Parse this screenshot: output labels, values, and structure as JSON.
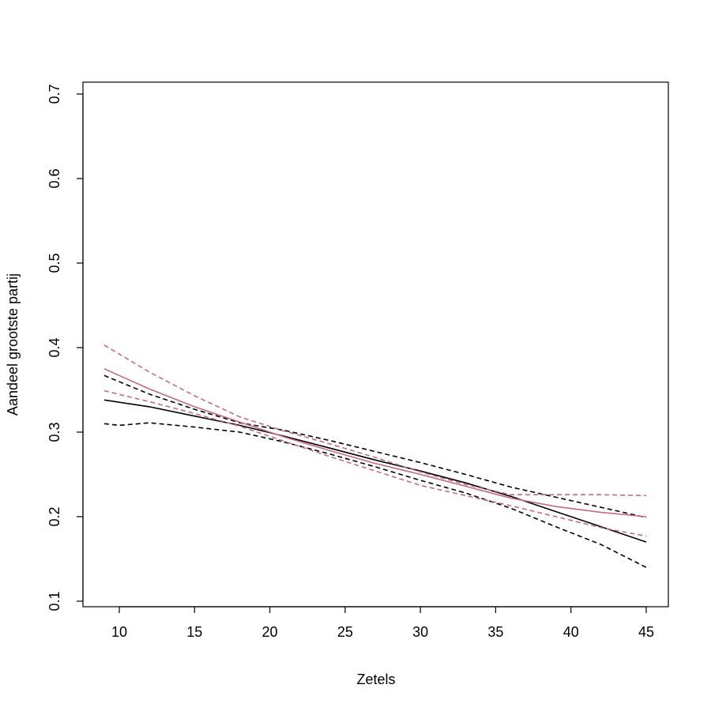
{
  "chart_data": {
    "type": "line",
    "title": "",
    "xlabel": "Zetels",
    "ylabel": "Aandeel grootste partij",
    "xlim": [
      9,
      45
    ],
    "ylim": [
      0.1,
      0.7
    ],
    "x_ticks": [
      10,
      15,
      20,
      25,
      30,
      35,
      40,
      45
    ],
    "y_ticks": [
      0.1,
      0.2,
      0.3,
      0.4,
      0.5,
      0.6,
      0.7
    ],
    "x_tick_labels": [
      "10",
      "15",
      "20",
      "25",
      "30",
      "35",
      "40",
      "45"
    ],
    "y_tick_labels": [
      "0.1",
      "0.2",
      "0.3",
      "0.4",
      "0.5",
      "0.6",
      "0.7"
    ],
    "legend": "none",
    "grid": false,
    "series": [
      {
        "color": "#000000",
        "style": "solid",
        "x": [
          9,
          12,
          15,
          18,
          21,
          24,
          27,
          30,
          33,
          36,
          39,
          42,
          45
        ],
        "y": [
          0.338,
          0.33,
          0.319,
          0.308,
          0.295,
          0.281,
          0.267,
          0.254,
          0.24,
          0.224,
          0.206,
          0.188,
          0.17
        ]
      },
      {
        "color": "#000000",
        "style": "dashed",
        "x": [
          9,
          12,
          15,
          18,
          21,
          24,
          27,
          30,
          33,
          36,
          39,
          42,
          45
        ],
        "y": [
          0.367,
          0.345,
          0.327,
          0.311,
          0.302,
          0.29,
          0.277,
          0.264,
          0.25,
          0.235,
          0.223,
          0.211,
          0.199
        ]
      },
      {
        "color": "#000000",
        "style": "dashed",
        "x": [
          9,
          10,
          12,
          15,
          18,
          21,
          24,
          27,
          30,
          33,
          36,
          39,
          42,
          45
        ],
        "y": [
          0.31,
          0.308,
          0.311,
          0.306,
          0.3,
          0.288,
          0.274,
          0.259,
          0.243,
          0.228,
          0.21,
          0.188,
          0.167,
          0.14
        ]
      },
      {
        "color": "#c46b82",
        "style": "solid",
        "x": [
          9,
          12,
          15,
          18,
          21,
          24,
          27,
          30,
          33,
          36,
          39,
          42,
          45
        ],
        "y": [
          0.375,
          0.351,
          0.33,
          0.312,
          0.294,
          0.278,
          0.263,
          0.25,
          0.236,
          0.222,
          0.212,
          0.205,
          0.2
        ]
      },
      {
        "color": "#c46b82",
        "style": "dashed",
        "x": [
          9,
          12,
          15,
          18,
          21,
          24,
          27,
          30,
          33,
          36,
          39,
          42,
          45
        ],
        "y": [
          0.403,
          0.371,
          0.343,
          0.318,
          0.301,
          0.286,
          0.27,
          0.253,
          0.238,
          0.226,
          0.226,
          0.226,
          0.225
        ]
      },
      {
        "color": "#c46b82",
        "style": "dashed",
        "x": [
          9,
          12,
          15,
          18,
          21,
          24,
          27,
          30,
          33,
          36,
          39,
          42,
          45
        ],
        "y": [
          0.349,
          0.336,
          0.322,
          0.307,
          0.289,
          0.271,
          0.254,
          0.237,
          0.225,
          0.213,
          0.2,
          0.187,
          0.177
        ]
      }
    ]
  }
}
